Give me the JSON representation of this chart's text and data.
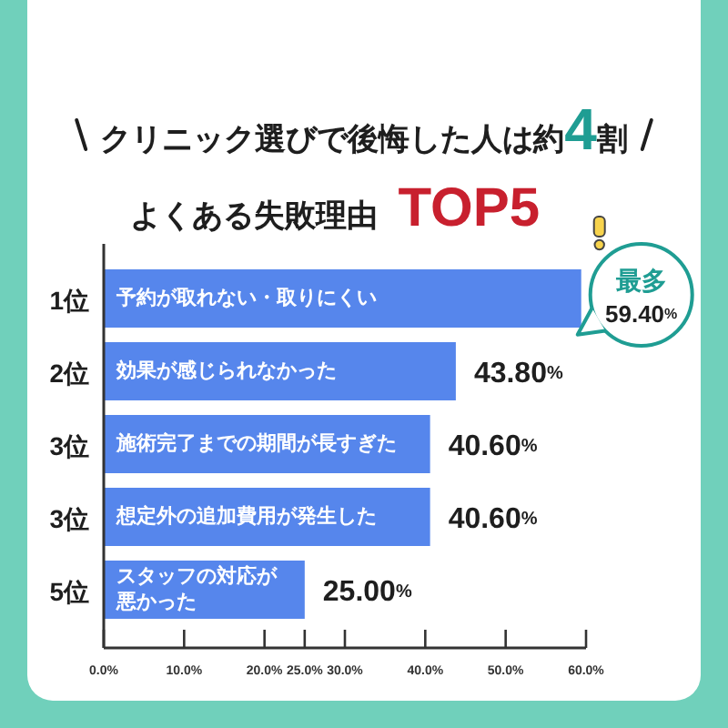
{
  "chart_data": {
    "type": "bar",
    "orientation": "horizontal",
    "title": "クリニック選びで後悔した人は約4割",
    "subtitle": "よくある失敗理由 TOP5",
    "categories": [
      "予約が取れない・取りにくい",
      "効果が感じられなかった",
      "施術完了までの期間が長すぎた",
      "想定外の追加費用が発生した",
      "スタッフの対応が悪かった"
    ],
    "values": [
      59.4,
      43.8,
      40.6,
      40.6,
      25.0
    ],
    "value_labels": [
      "59.40%",
      "43.80%",
      "40.60%",
      "40.60%",
      "25.00%"
    ],
    "color": "#5686ec",
    "xlim": [
      0,
      60
    ],
    "xticks": [
      {
        "value": 0,
        "label": "0.0%"
      },
      {
        "value": 10,
        "label": "10.0%"
      },
      {
        "value": 20,
        "label": "20.0%"
      },
      {
        "value": 25,
        "label": "25.0%"
      },
      {
        "value": 30,
        "label": "30.0%"
      },
      {
        "value": 40,
        "label": "40.0%"
      },
      {
        "value": 50,
        "label": "50.0%"
      },
      {
        "value": 60,
        "label": "60.0%"
      }
    ],
    "annotations": [
      "1位",
      "2位",
      "3位",
      "3位",
      "5位",
      {
        "text": "最多",
        "x": 59.4,
        "y": "予約が取れない・取りにくい"
      }
    ]
  }
}
